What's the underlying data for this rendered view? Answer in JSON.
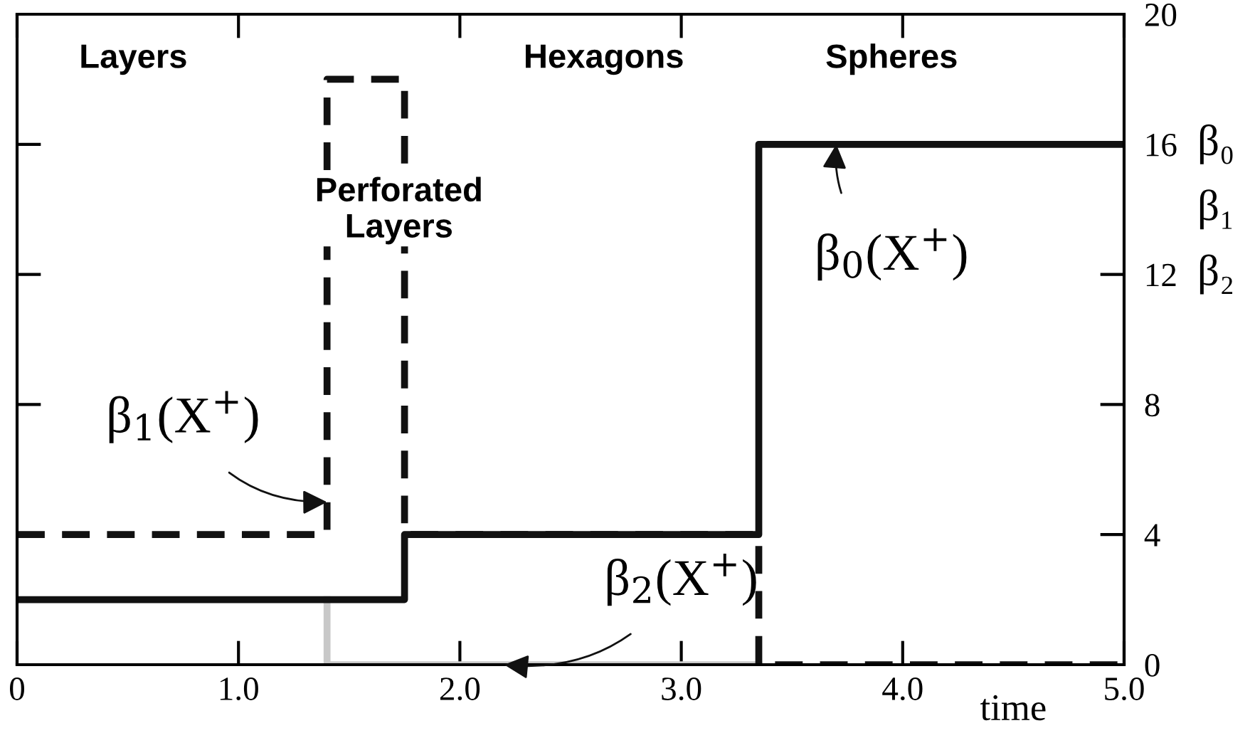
{
  "chart_data": {
    "type": "step",
    "xlabel": "time",
    "xlim": [
      0,
      5
    ],
    "ylim": [
      0,
      20
    ],
    "xticks": [
      0,
      {
        "value": 1,
        "label": "1.0"
      },
      {
        "value": 2,
        "label": "2.0"
      },
      {
        "value": 3,
        "label": "3.0"
      },
      {
        "value": 4,
        "label": "4.0"
      },
      {
        "value": 5,
        "label": "5.0"
      }
    ],
    "yticks": [
      0,
      4,
      8,
      12,
      16,
      20
    ],
    "grid": false,
    "legend": false,
    "series": [
      {
        "color": "#c8c8c8",
        "line_style": "solid",
        "x": [
          1.4,
          1.4,
          3.35
        ],
        "values": [
          2,
          0,
          0
        ]
      },
      {
        "color": "#111111",
        "line_style": "dashed",
        "x": [
          0,
          1.4,
          1.75,
          3.35,
          5
        ],
        "values": [
          4,
          18,
          4,
          0,
          0
        ]
      },
      {
        "color": "#111111",
        "line_style": "solid",
        "x": [
          0,
          1.75,
          3.35,
          5
        ],
        "values": [
          2,
          4,
          16,
          16
        ]
      }
    ],
    "annotations": [
      "Layers",
      "Hexagons",
      "Spheres",
      "Perforated\nLayers",
      {
        "text": "β$_{0}$(X$^{+}$)",
        "x": 3.7,
        "y": 16
      },
      {
        "text": "β$_{1}$(X$^{+}$)",
        "x": 1.4,
        "y": 5
      },
      {
        "text": "β$_{2}$(X$^{+}$)",
        "x": 2.2,
        "y": 0
      },
      "β₀",
      "β₁",
      "β₂"
    ]
  }
}
